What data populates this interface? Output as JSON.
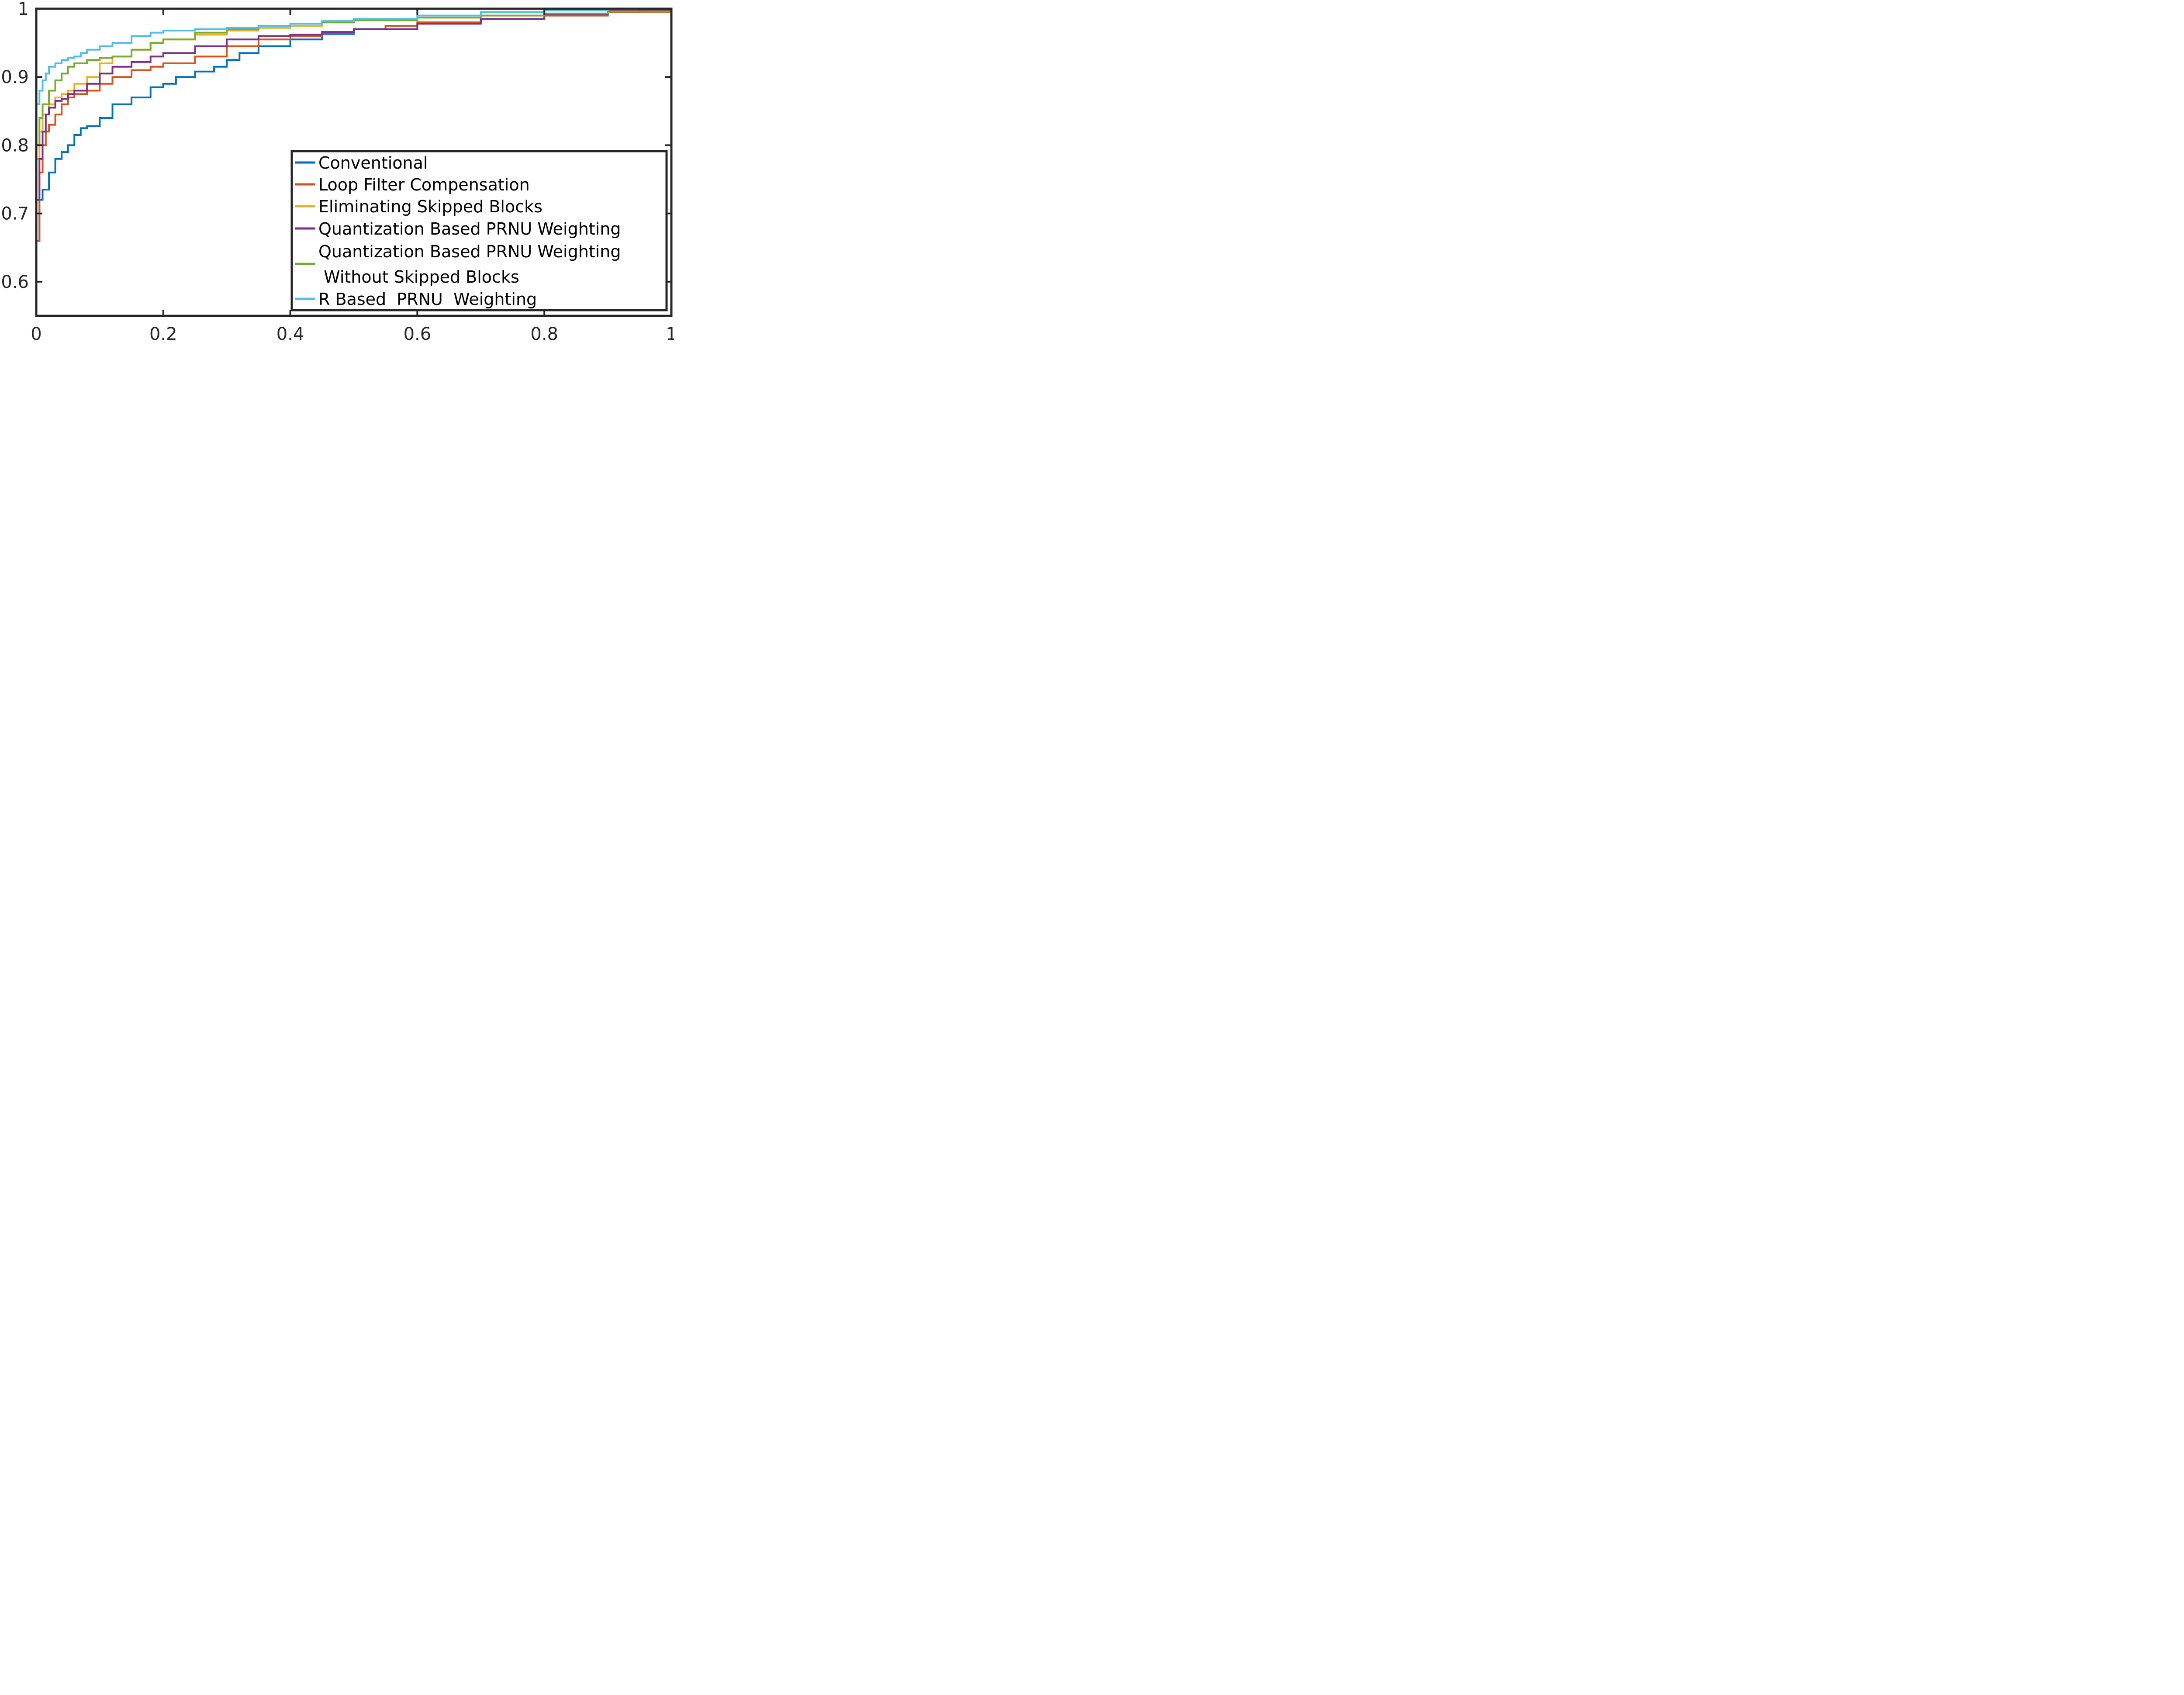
{
  "chart_data": {
    "type": "line",
    "title": "",
    "xlabel": "",
    "ylabel": "",
    "xlim": [
      0,
      1
    ],
    "ylim": [
      0.55,
      1
    ],
    "xticks": [
      0,
      0.2,
      0.4,
      0.6,
      0.8,
      1
    ],
    "yticks": [
      0.6,
      0.7,
      0.8,
      0.9,
      1
    ],
    "xtick_labels": [
      "0",
      "0.2",
      "0.4",
      "0.6",
      "0.8",
      "1"
    ],
    "ytick_labels": [
      "0.6",
      "0.7",
      "0.8",
      "0.9",
      "1"
    ],
    "grid": false,
    "legend_position": "bottom-right",
    "series": [
      {
        "name": "Conventional",
        "color": "#0072BD",
        "x": [
          0,
          0,
          0.005,
          0.01,
          0.02,
          0.03,
          0.04,
          0.05,
          0.06,
          0.07,
          0.08,
          0.1,
          0.12,
          0.15,
          0.18,
          0.2,
          0.22,
          0.25,
          0.28,
          0.3,
          0.32,
          0.35,
          0.4,
          0.45,
          0.5,
          0.55,
          0.6,
          0.7,
          0.8,
          0.9,
          0.95,
          1
        ],
        "y": [
          0.605,
          0.66,
          0.72,
          0.735,
          0.76,
          0.78,
          0.79,
          0.8,
          0.815,
          0.825,
          0.828,
          0.84,
          0.86,
          0.87,
          0.885,
          0.89,
          0.9,
          0.908,
          0.915,
          0.925,
          0.935,
          0.945,
          0.955,
          0.963,
          0.97,
          0.975,
          0.98,
          0.985,
          0.99,
          0.995,
          0.998,
          1
        ]
      },
      {
        "name": "Loop Filter Compensation",
        "color": "#D95319",
        "x": [
          0,
          0,
          0.005,
          0.01,
          0.015,
          0.02,
          0.03,
          0.04,
          0.05,
          0.06,
          0.08,
          0.1,
          0.12,
          0.15,
          0.18,
          0.2,
          0.25,
          0.3,
          0.35,
          0.4,
          0.45,
          0.5,
          0.55,
          0.6,
          0.7,
          0.8,
          0.9,
          1
        ],
        "y": [
          0.61,
          0.66,
          0.76,
          0.8,
          0.82,
          0.83,
          0.845,
          0.86,
          0.87,
          0.875,
          0.88,
          0.89,
          0.9,
          0.91,
          0.915,
          0.92,
          0.93,
          0.945,
          0.955,
          0.96,
          0.965,
          0.97,
          0.975,
          0.98,
          0.985,
          0.99,
          0.995,
          1
        ]
      },
      {
        "name": "Eliminating Skipped Blocks",
        "color": "#EDB120",
        "x": [
          0,
          0,
          0.005,
          0.01,
          0.02,
          0.03,
          0.04,
          0.05,
          0.06,
          0.08,
          0.1,
          0.12,
          0.15,
          0.18,
          0.2,
          0.25,
          0.3,
          0.35,
          0.4,
          0.45,
          0.5,
          0.6,
          0.7,
          0.8,
          0.9,
          1
        ],
        "y": [
          0.73,
          0.78,
          0.82,
          0.845,
          0.86,
          0.87,
          0.875,
          0.88,
          0.89,
          0.9,
          0.92,
          0.93,
          0.94,
          0.95,
          0.955,
          0.962,
          0.968,
          0.972,
          0.975,
          0.98,
          0.983,
          0.987,
          0.99,
          0.993,
          0.996,
          1
        ]
      },
      {
        "name": "Quantization Based PRNU Weighting",
        "color": "#7E2F8E",
        "x": [
          0,
          0,
          0.005,
          0.01,
          0.015,
          0.02,
          0.03,
          0.04,
          0.05,
          0.06,
          0.08,
          0.1,
          0.12,
          0.15,
          0.18,
          0.2,
          0.25,
          0.3,
          0.35,
          0.4,
          0.45,
          0.5,
          0.6,
          0.7,
          0.8,
          0.9,
          1
        ],
        "y": [
          0.66,
          0.72,
          0.78,
          0.82,
          0.845,
          0.855,
          0.865,
          0.868,
          0.875,
          0.88,
          0.89,
          0.905,
          0.915,
          0.922,
          0.93,
          0.935,
          0.945,
          0.955,
          0.96,
          0.962,
          0.966,
          0.97,
          0.978,
          0.985,
          0.992,
          0.997,
          1
        ]
      },
      {
        "name": "Quantization Based PRNU Weighting\n Without Skipped Blocks",
        "name_lines": [
          "Quantization Based PRNU Weighting",
          " Without Skipped Blocks"
        ],
        "color": "#77AC30",
        "x": [
          0,
          0,
          0.005,
          0.01,
          0.02,
          0.03,
          0.04,
          0.05,
          0.06,
          0.08,
          0.1,
          0.12,
          0.15,
          0.18,
          0.2,
          0.25,
          0.3,
          0.35,
          0.4,
          0.45,
          0.5,
          0.6,
          0.7,
          0.8,
          0.9,
          1
        ],
        "y": [
          0.765,
          0.8,
          0.84,
          0.86,
          0.88,
          0.895,
          0.905,
          0.915,
          0.92,
          0.925,
          0.928,
          0.93,
          0.94,
          0.95,
          0.955,
          0.965,
          0.97,
          0.975,
          0.978,
          0.98,
          0.983,
          0.987,
          0.99,
          0.993,
          0.996,
          1
        ]
      },
      {
        "name": "R Based  PRNU  Weighting",
        "color": "#4DBEEE",
        "x": [
          0,
          0,
          0.005,
          0.01,
          0.015,
          0.02,
          0.03,
          0.04,
          0.05,
          0.06,
          0.07,
          0.08,
          0.1,
          0.12,
          0.15,
          0.18,
          0.2,
          0.25,
          0.3,
          0.35,
          0.4,
          0.45,
          0.5,
          0.6,
          0.7,
          0.8,
          0.9,
          1
        ],
        "y": [
          0.83,
          0.86,
          0.88,
          0.895,
          0.905,
          0.915,
          0.92,
          0.925,
          0.928,
          0.93,
          0.935,
          0.94,
          0.945,
          0.95,
          0.96,
          0.965,
          0.968,
          0.97,
          0.972,
          0.975,
          0.978,
          0.982,
          0.985,
          0.99,
          0.995,
          0.998,
          1,
          1
        ]
      }
    ]
  }
}
